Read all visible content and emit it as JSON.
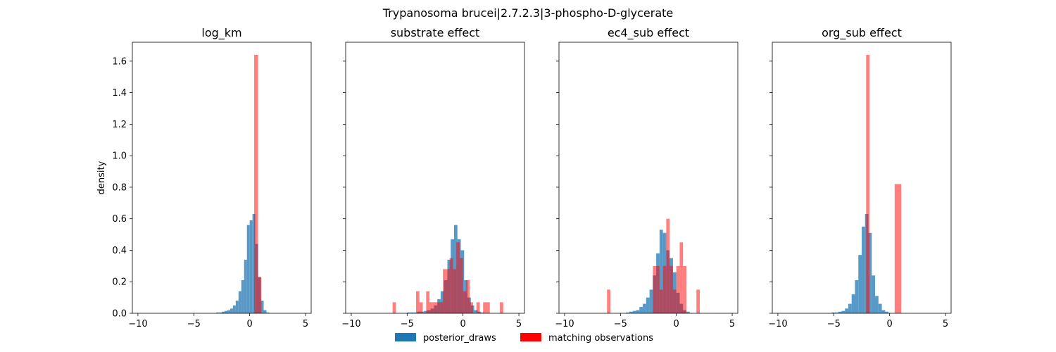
{
  "figure_title": "Trypanosoma brucei|2.7.2.3|3-phospho-D-glycerate",
  "colors": {
    "posterior": "#1f77b4",
    "observations": "#ff0000"
  },
  "legend": {
    "placement": "bottom-center",
    "items": [
      {
        "label": "posterior_draws",
        "color": "#1f77b4"
      },
      {
        "label": "matching observations",
        "color": "#ff0000"
      }
    ]
  },
  "chart_data": [
    {
      "type": "histogram",
      "title": "log_km",
      "ylabel": "density",
      "xlim": [
        -10.5,
        5.5
      ],
      "ylim": [
        0,
        1.72
      ],
      "xticks": [
        -10,
        -5,
        0,
        5
      ],
      "yticks": [
        0.0,
        0.2,
        0.4,
        0.6,
        0.8,
        1.0,
        1.2,
        1.4,
        1.6
      ],
      "series": [
        {
          "name": "posterior_draws",
          "alpha": 0.75,
          "bins": [
            [
              -3.0,
              -2.75,
              0.005
            ],
            [
              -2.75,
              -2.5,
              0.005
            ],
            [
              -2.5,
              -2.25,
              0.01
            ],
            [
              -2.25,
              -2.0,
              0.015
            ],
            [
              -2.0,
              -1.75,
              0.02
            ],
            [
              -1.75,
              -1.5,
              0.03
            ],
            [
              -1.5,
              -1.25,
              0.05
            ],
            [
              -1.25,
              -1.0,
              0.08
            ],
            [
              -1.0,
              -0.75,
              0.14
            ],
            [
              -0.75,
              -0.5,
              0.21
            ],
            [
              -0.5,
              -0.25,
              0.34
            ],
            [
              -0.25,
              0.0,
              0.56
            ],
            [
              0.0,
              0.25,
              0.59
            ],
            [
              0.25,
              0.5,
              0.63
            ],
            [
              0.5,
              0.75,
              0.44
            ],
            [
              0.75,
              1.0,
              0.23
            ],
            [
              1.0,
              1.25,
              0.08
            ],
            [
              1.25,
              1.5,
              0.02
            ],
            [
              1.5,
              1.75,
              0.005
            ]
          ]
        },
        {
          "name": "matching observations",
          "alpha": 0.5,
          "bins": [
            [
              0.4,
              0.75,
              1.64
            ],
            [
              0.75,
              1.05,
              0.23
            ]
          ]
        }
      ]
    },
    {
      "type": "histogram",
      "title": "substrate effect",
      "xlim": [
        -10.5,
        5.5
      ],
      "ylim": [
        0,
        1.72
      ],
      "xticks": [
        -10,
        -5,
        0,
        5
      ],
      "series": [
        {
          "name": "posterior_draws",
          "alpha": 0.75,
          "bins": [
            [
              -5.0,
              -4.7,
              0.005
            ],
            [
              -4.7,
              -4.4,
              0.005
            ],
            [
              -4.4,
              -4.1,
              0.005
            ],
            [
              -4.1,
              -3.8,
              0.01
            ],
            [
              -3.8,
              -3.5,
              0.01
            ],
            [
              -3.5,
              -3.2,
              0.015
            ],
            [
              -3.2,
              -2.9,
              0.02
            ],
            [
              -2.9,
              -2.6,
              0.03
            ],
            [
              -2.6,
              -2.3,
              0.05
            ],
            [
              -2.3,
              -2.0,
              0.09
            ],
            [
              -2.0,
              -1.7,
              0.14
            ],
            [
              -1.7,
              -1.4,
              0.21
            ],
            [
              -1.4,
              -1.1,
              0.34
            ],
            [
              -1.1,
              -0.8,
              0.47
            ],
            [
              -0.8,
              -0.5,
              0.56
            ],
            [
              -0.5,
              -0.2,
              0.47
            ],
            [
              -0.2,
              0.1,
              0.4
            ],
            [
              0.1,
              0.4,
              0.21
            ],
            [
              0.4,
              0.7,
              0.1
            ],
            [
              0.7,
              1.0,
              0.05
            ],
            [
              1.0,
              1.3,
              0.02
            ],
            [
              1.3,
              1.6,
              0.01
            ],
            [
              1.6,
              1.9,
              0.005
            ]
          ]
        },
        {
          "name": "matching observations",
          "alpha": 0.5,
          "bins": [
            [
              -6.3,
              -6.0,
              0.07
            ],
            [
              -4.2,
              -3.9,
              0.14
            ],
            [
              -3.9,
              -3.6,
              0.07
            ],
            [
              -3.3,
              -3.0,
              0.14
            ],
            [
              -3.0,
              -2.7,
              0.07
            ],
            [
              -2.7,
              -2.4,
              0.07
            ],
            [
              -2.4,
              -2.1,
              0.07
            ],
            [
              -2.1,
              -1.8,
              0.07
            ],
            [
              -1.8,
              -1.5,
              0.28
            ],
            [
              -1.5,
              -1.2,
              0.28
            ],
            [
              -1.2,
              -0.9,
              0.35
            ],
            [
              -0.9,
              -0.6,
              0.28
            ],
            [
              -0.6,
              -0.3,
              0.45
            ],
            [
              -0.3,
              0.0,
              0.35
            ],
            [
              0.0,
              0.3,
              0.14
            ],
            [
              0.3,
              0.6,
              0.21
            ],
            [
              0.6,
              0.9,
              0.07
            ],
            [
              1.2,
              1.5,
              0.07
            ],
            [
              1.8,
              2.1,
              0.07
            ],
            [
              2.1,
              2.4,
              0.07
            ],
            [
              3.3,
              3.6,
              0.07
            ]
          ]
        }
      ]
    },
    {
      "type": "histogram",
      "title": "ec4_sub effect",
      "xlim": [
        -10.5,
        5.5
      ],
      "ylim": [
        0,
        1.72
      ],
      "xticks": [
        -10,
        -5,
        0,
        5
      ],
      "series": [
        {
          "name": "posterior_draws",
          "alpha": 0.75,
          "bins": [
            [
              -4.5,
              -4.2,
              0.005
            ],
            [
              -4.2,
              -3.9,
              0.01
            ],
            [
              -3.9,
              -3.6,
              0.015
            ],
            [
              -3.6,
              -3.3,
              0.02
            ],
            [
              -3.3,
              -3.0,
              0.04
            ],
            [
              -3.0,
              -2.7,
              0.06
            ],
            [
              -2.7,
              -2.4,
              0.1
            ],
            [
              -2.4,
              -2.1,
              0.15
            ],
            [
              -2.1,
              -1.8,
              0.24
            ],
            [
              -1.8,
              -1.5,
              0.38
            ],
            [
              -1.5,
              -1.2,
              0.53
            ],
            [
              -1.2,
              -0.9,
              0.51
            ],
            [
              -0.9,
              -0.6,
              0.4
            ],
            [
              -0.6,
              -0.3,
              0.35
            ],
            [
              -0.3,
              0.0,
              0.26
            ],
            [
              0.0,
              0.3,
              0.13
            ],
            [
              0.3,
              0.6,
              0.06
            ],
            [
              0.6,
              0.9,
              0.02
            ],
            [
              0.9,
              1.2,
              0.01
            ]
          ]
        },
        {
          "name": "matching observations",
          "alpha": 0.5,
          "bins": [
            [
              -6.2,
              -5.9,
              0.15
            ],
            [
              -2.1,
              -1.8,
              0.3
            ],
            [
              -1.8,
              -1.5,
              0.3
            ],
            [
              -1.5,
              -1.2,
              0.15
            ],
            [
              -1.2,
              -0.9,
              0.3
            ],
            [
              -0.9,
              -0.6,
              0.6
            ],
            [
              -0.6,
              -0.3,
              0.3
            ],
            [
              -0.3,
              0.0,
              0.15
            ],
            [
              0.0,
              0.3,
              0.3
            ],
            [
              0.3,
              0.6,
              0.45
            ],
            [
              0.6,
              0.9,
              0.3
            ],
            [
              1.8,
              2.1,
              0.15
            ]
          ]
        }
      ]
    },
    {
      "type": "histogram",
      "title": "org_sub effect",
      "xlim": [
        -10.5,
        5.5
      ],
      "ylim": [
        0,
        1.72
      ],
      "xticks": [
        -10,
        -5,
        0,
        5
      ],
      "series": [
        {
          "name": "posterior_draws",
          "alpha": 0.75,
          "bins": [
            [
              -5.2,
              -4.9,
              0.005
            ],
            [
              -4.9,
              -4.6,
              0.005
            ],
            [
              -4.6,
              -4.3,
              0.01
            ],
            [
              -4.3,
              -4.0,
              0.015
            ],
            [
              -4.0,
              -3.7,
              0.03
            ],
            [
              -3.7,
              -3.4,
              0.06
            ],
            [
              -3.4,
              -3.1,
              0.12
            ],
            [
              -3.1,
              -2.8,
              0.21
            ],
            [
              -2.8,
              -2.5,
              0.37
            ],
            [
              -2.5,
              -2.2,
              0.55
            ],
            [
              -2.2,
              -1.9,
              0.63
            ],
            [
              -1.9,
              -1.6,
              0.51
            ],
            [
              -1.6,
              -1.3,
              0.24
            ],
            [
              -1.3,
              -1.0,
              0.11
            ],
            [
              -1.0,
              -0.7,
              0.06
            ],
            [
              -0.7,
              -0.4,
              0.02
            ],
            [
              -0.4,
              -0.1,
              0.01
            ]
          ]
        },
        {
          "name": "matching observations",
          "alpha": 0.5,
          "bins": [
            [
              -2.1,
              -1.8,
              1.64
            ],
            [
              0.45,
              1.05,
              0.82
            ]
          ]
        }
      ]
    }
  ]
}
